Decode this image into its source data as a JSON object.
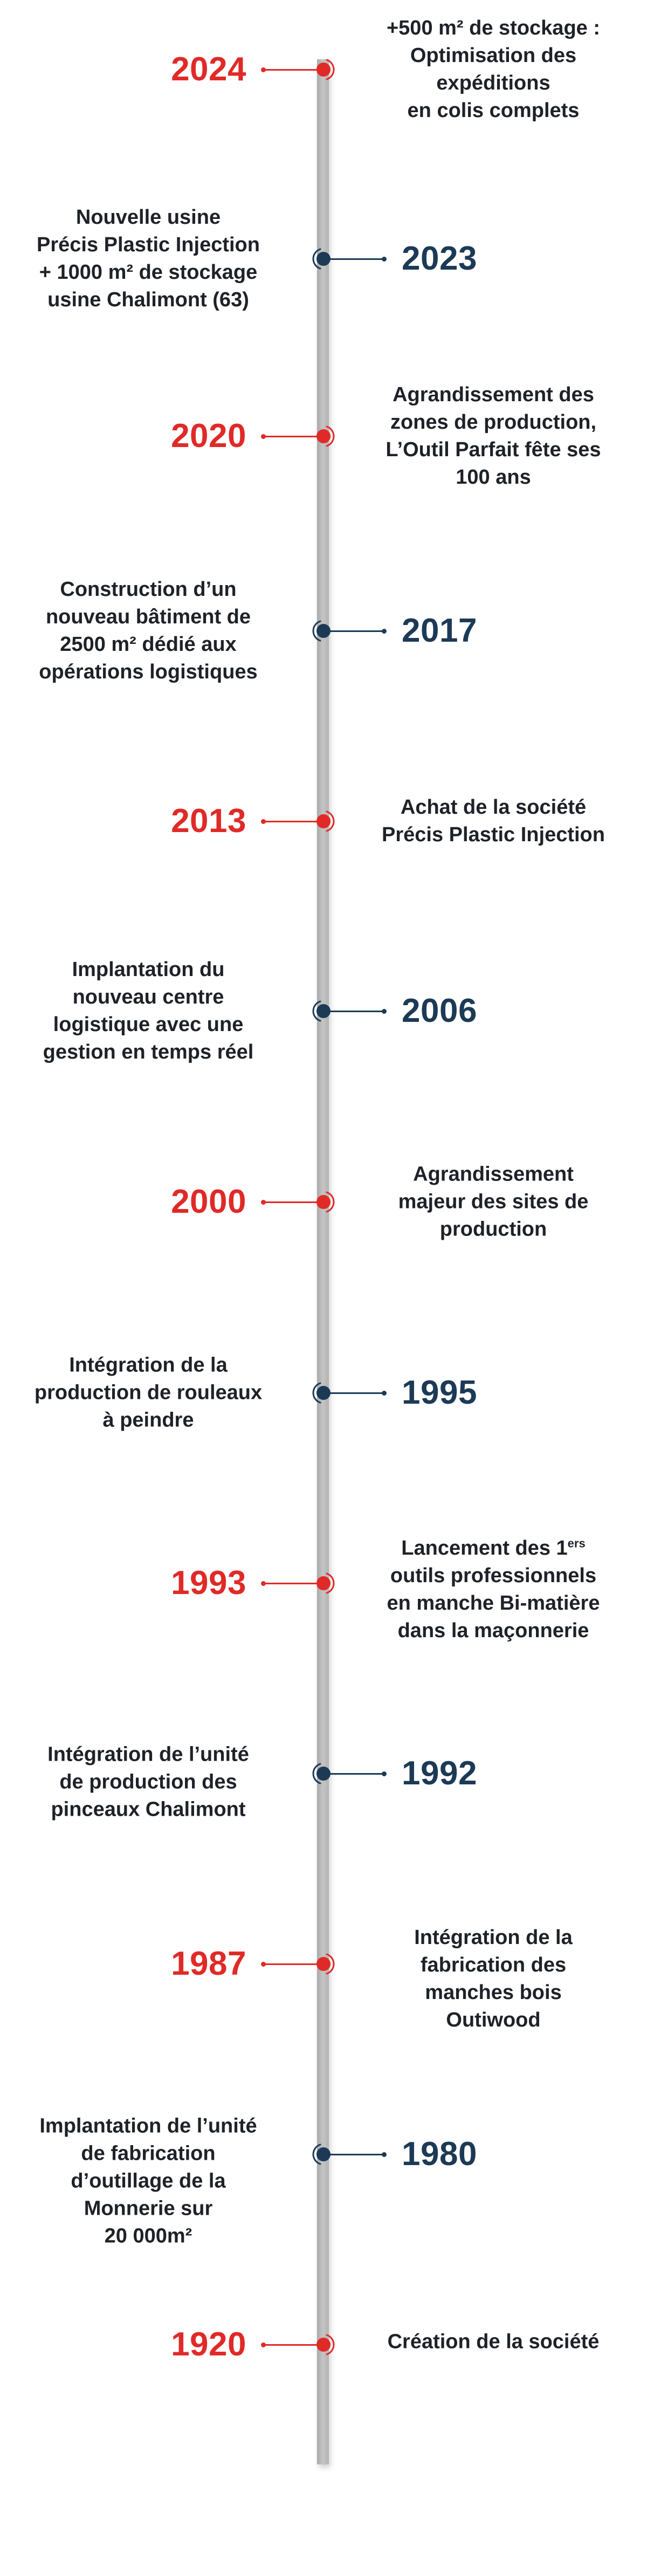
{
  "colors": {
    "accent_red": "#e02a27",
    "accent_navy": "#1c3a55",
    "text": "#1e2228",
    "axis": "#bcbcbc"
  },
  "events": [
    {
      "year": "2024",
      "side": "red",
      "text": "+500 m² de stockage :\nOptimisation des\nexpéditions\nen colis complets"
    },
    {
      "year": "2023",
      "side": "blue",
      "text": "Nouvelle usine\nPrécis Plastic Injection\n+ 1000 m² de stockage\nusine Chalimont (63)"
    },
    {
      "year": "2020",
      "side": "red",
      "text": "Agrandissement des\nzones de production,\nL’Outil Parfait fête ses\n100 ans"
    },
    {
      "year": "2017",
      "side": "blue",
      "text": "Construction d’un\nnouveau bâtiment de\n2500 m² dédié aux\nopérations logistiques"
    },
    {
      "year": "2013",
      "side": "red",
      "text": "Achat de la société\nPrécis Plastic Injection"
    },
    {
      "year": "2006",
      "side": "blue",
      "text": "Implantation du\nnouveau centre\nlogistique avec une\ngestion en temps réel"
    },
    {
      "year": "2000",
      "side": "red",
      "text": "Agrandissement\nmajeur des sites de\nproduction"
    },
    {
      "year": "1995",
      "side": "blue",
      "text": "Intégration de la\nproduction de rouleaux\nà peindre"
    },
    {
      "year": "1993",
      "side": "red",
      "text_before": "Lancement des 1",
      "text_sup": "ers",
      "text_after": "\noutils professionnels\nen manche Bi-matière\ndans la maçonnerie"
    },
    {
      "year": "1992",
      "side": "blue",
      "text": "Intégration de l’unité\nde production des\npinceaux Chalimont"
    },
    {
      "year": "1987",
      "side": "red",
      "text": "Intégration de la\nfabrication des\nmanches bois\nOutiwood"
    },
    {
      "year": "1980",
      "side": "blue",
      "text": "Implantation de l’unité\nde fabrication\nd’outillage de la\nMonnerie sur\n20 000m²"
    },
    {
      "year": "1920",
      "side": "red",
      "text": "Création de la société"
    }
  ]
}
